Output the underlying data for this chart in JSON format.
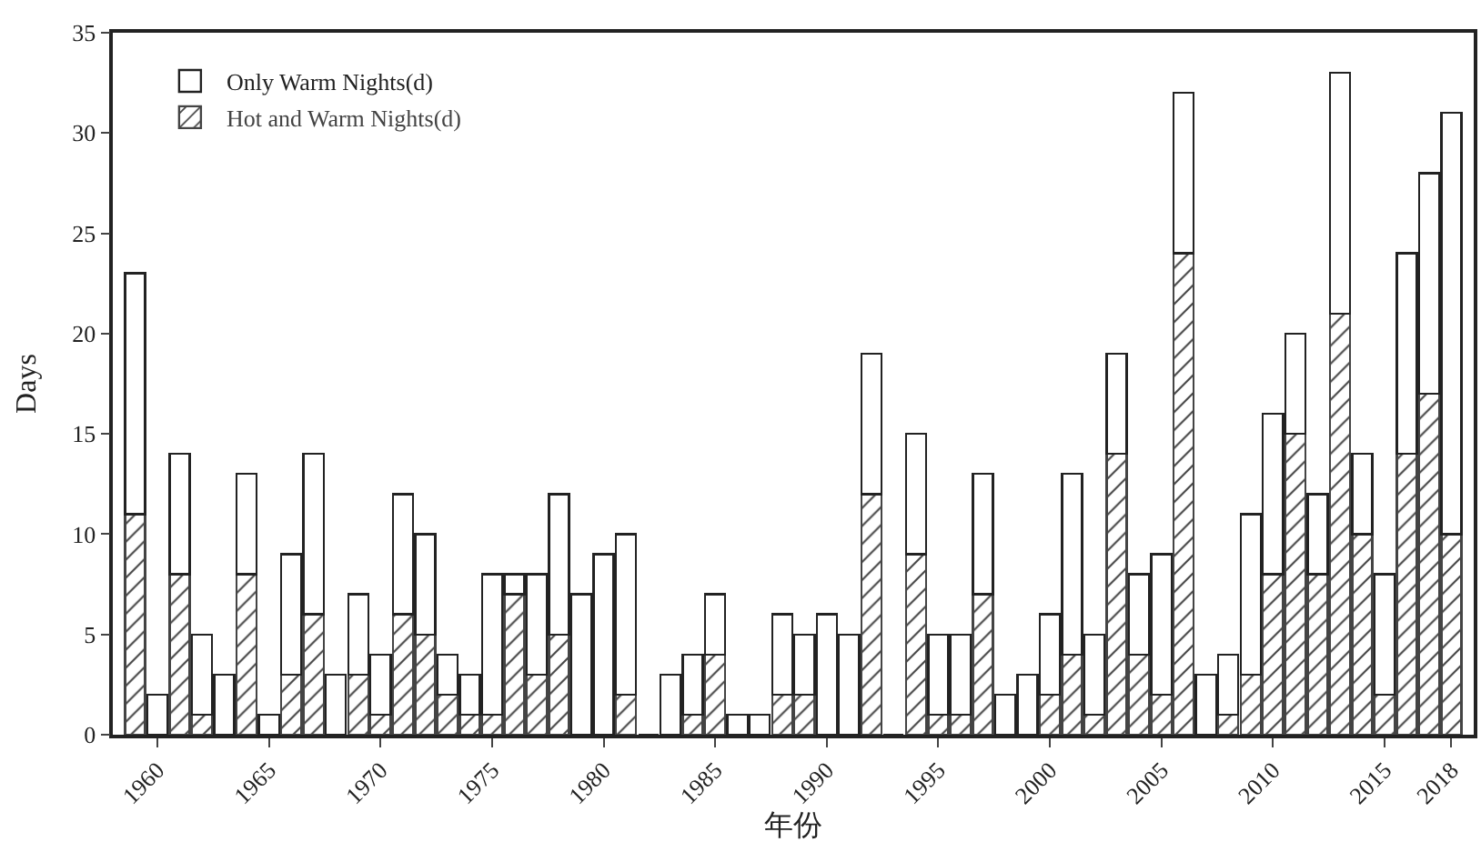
{
  "chart_data": {
    "type": "bar",
    "stacked": true,
    "xlabel": "年份",
    "ylabel": "Days",
    "x": [
      1959,
      1960,
      1961,
      1962,
      1963,
      1964,
      1965,
      1966,
      1967,
      1968,
      1969,
      1970,
      1971,
      1972,
      1973,
      1974,
      1975,
      1976,
      1977,
      1978,
      1979,
      1980,
      1981,
      1982,
      1983,
      1984,
      1985,
      1986,
      1987,
      1988,
      1989,
      1990,
      1991,
      1992,
      1993,
      1994,
      1995,
      1996,
      1997,
      1998,
      1999,
      2000,
      2001,
      2002,
      2003,
      2004,
      2005,
      2006,
      2007,
      2008,
      2009,
      2010,
      2011,
      2012,
      2013,
      2014,
      2015,
      2016,
      2017,
      2018
    ],
    "series": [
      {
        "name": "Hot and Warm Nights(d)",
        "color": "#444444",
        "values": [
          11,
          0,
          8,
          1,
          0,
          8,
          0,
          3,
          6,
          0,
          3,
          1,
          6,
          5,
          2,
          1,
          1,
          7,
          3,
          5,
          0,
          0,
          2,
          0,
          0,
          1,
          4,
          0,
          0,
          2,
          2,
          0,
          0,
          12,
          0,
          9,
          1,
          1,
          7,
          0,
          0,
          2,
          4,
          1,
          14,
          4,
          2,
          24,
          0,
          1,
          3,
          8,
          15,
          8,
          21,
          10,
          2,
          14,
          17,
          10
        ]
      },
      {
        "name": "Only Warm Nights(d)",
        "color": "#ffffff",
        "values": [
          12,
          2,
          6,
          4,
          3,
          5,
          1,
          6,
          8,
          3,
          4,
          3,
          6,
          5,
          2,
          2,
          7,
          1,
          5,
          7,
          7,
          9,
          8,
          0,
          3,
          3,
          3,
          1,
          1,
          4,
          3,
          6,
          5,
          7,
          0,
          6,
          4,
          4,
          6,
          2,
          3,
          4,
          9,
          4,
          5,
          4,
          7,
          8,
          3,
          3,
          8,
          8,
          5,
          4,
          12,
          4,
          6,
          10,
          11,
          21
        ]
      }
    ],
    "xlim": [
      1958,
      2019
    ],
    "xticks": [
      1960,
      1965,
      1970,
      1975,
      1980,
      1985,
      1990,
      1995,
      2000,
      2005,
      2010,
      2015,
      2018
    ],
    "ylim": [
      0,
      35
    ],
    "yticks": [
      0,
      5,
      10,
      15,
      20,
      25,
      30,
      35
    ],
    "grid": false,
    "legend": "top left"
  }
}
